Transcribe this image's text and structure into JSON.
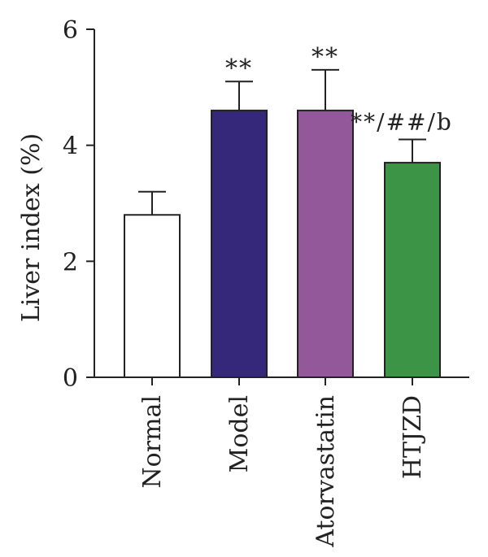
{
  "chart_data": {
    "type": "bar",
    "title": "",
    "xlabel": "",
    "ylabel": "Liver index (%)",
    "ylim": [
      0,
      6
    ],
    "yticks": [
      0,
      2,
      4,
      6
    ],
    "grid": false,
    "legend": "none",
    "categories": [
      "Normal",
      "Model",
      "Atorvastatin",
      "HTJZD"
    ],
    "values": [
      2.8,
      4.6,
      4.6,
      3.7
    ],
    "errors": [
      0.4,
      0.5,
      0.7,
      0.4
    ],
    "annotations": [
      "",
      "**",
      "**",
      "**/##/b"
    ],
    "colors": [
      "#ffffff",
      "#35277a",
      "#93589a",
      "#3c9446"
    ]
  }
}
